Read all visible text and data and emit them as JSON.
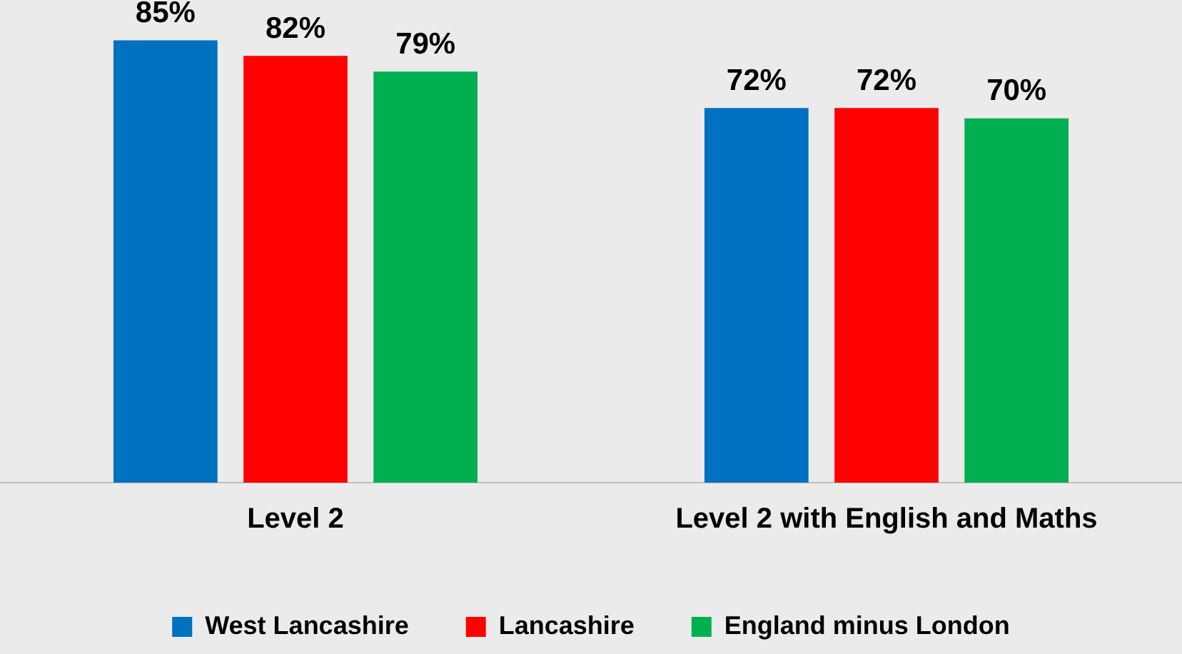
{
  "chart_data": {
    "type": "bar",
    "categories": [
      "Level 2",
      "Level 2 with English and Maths"
    ],
    "series": [
      {
        "name": "West Lancashire",
        "color": "#0070c0",
        "values": [
          85,
          72
        ],
        "value_labels": [
          "85%",
          "72%"
        ]
      },
      {
        "name": "Lancashire",
        "color": "#ff0000",
        "values": [
          82,
          72
        ],
        "value_labels": [
          "82%",
          "72%"
        ]
      },
      {
        "name": "England minus London",
        "color": "#00b050",
        "values": [
          79,
          70
        ],
        "value_labels": [
          "79%",
          "70%"
        ]
      }
    ],
    "grid": false,
    "legend": "bottom"
  }
}
